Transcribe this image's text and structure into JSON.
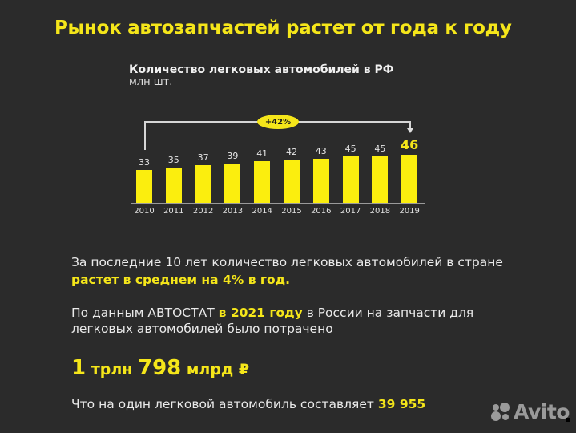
{
  "title": "Рынок автозапчастей растет от года к году",
  "chart": {
    "title": "Количество легковых автомобилей в РФ",
    "subtitle": "млн шт.",
    "growth_badge": "+42%"
  },
  "chart_data": {
    "type": "bar",
    "title": "Количество легковых автомобилей в РФ",
    "ylabel": "млн шт.",
    "xlabel": "",
    "categories": [
      "2010",
      "2011",
      "2012",
      "2013",
      "2014",
      "2015",
      "2016",
      "2017",
      "2018",
      "2019"
    ],
    "values": [
      33,
      35,
      37,
      39,
      41,
      42,
      43,
      45,
      45,
      46
    ],
    "data_labels": [
      "33",
      "35",
      "37",
      "39",
      "41",
      "42",
      "43",
      "45",
      "45",
      "46"
    ],
    "annotations": [
      {
        "text": "+42%",
        "from": "2010",
        "to": "2019"
      }
    ],
    "highlighted_category": "2019",
    "bar_color": "#fbee0e",
    "grid": false,
    "legend": null
  },
  "text": {
    "para1_line1": "За последние 10 лет количество легковых автомобилей в стране",
    "para1_line2": "растет в среднем на 4% в год.",
    "para2_prefix": "По данным АВТОСТАТ ",
    "para2_highlight": "в 2021 году",
    "para2_suffix": " в России на запчасти для",
    "para2_line2": "легковых автомобилей было потрачено",
    "amount_num1": "1",
    "amount_unit1": " трлн ",
    "amount_num2": "798",
    "amount_unit2": " млрд ₽",
    "para3_prefix": "Что на один легковой автомобиль составляет ",
    "para3_highlight": "39 955"
  },
  "watermark": {
    "label": "Avito"
  },
  "colors": {
    "background": "#2b2b2b",
    "accent": "#f5e61a",
    "bar": "#fbee0e",
    "text": "#eaeaea"
  }
}
